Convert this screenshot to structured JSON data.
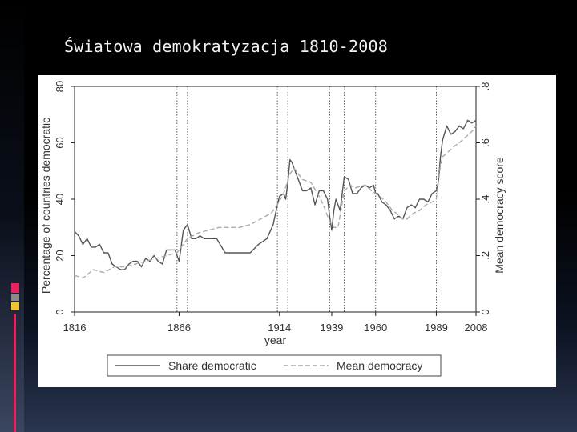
{
  "slide": {
    "title": "Światowa demokratyzacja 1810-2008",
    "colors": {
      "background": "#000000",
      "accent_bar": "#3b4660",
      "deco_red": "#e8225a",
      "deco_gray": "#8a8a8a",
      "deco_yellow": "#f2c230"
    }
  },
  "chart_data": {
    "type": "line",
    "title": "",
    "xlabel": "year",
    "ylabel": "Percentage of countries democratic",
    "ylabel_right": "Mean democracy score",
    "xlim": [
      1816,
      2008
    ],
    "ylim": [
      0,
      80
    ],
    "ylim_right": [
      0,
      0.8
    ],
    "x_ticks": [
      1816,
      1866,
      1914,
      1939,
      1960,
      1989,
      2008
    ],
    "x_tick_labels": [
      "1816",
      "1866",
      "1914",
      "1939",
      "1960",
      "1989",
      "2008"
    ],
    "y_ticks": [
      0,
      20,
      40,
      60,
      80
    ],
    "y_tick_labels": [
      "0",
      "20",
      "40",
      "60",
      "80"
    ],
    "y_ticks_right": [
      0,
      0.2,
      0.4,
      0.6,
      0.8
    ],
    "y_tick_labels_right": [
      "0",
      ".2",
      ".4",
      ".6",
      ".8"
    ],
    "vlines": [
      1865,
      1870,
      1913,
      1918,
      1938,
      1945,
      1960,
      1989
    ],
    "grid": false,
    "legend_position": "bottom",
    "series": [
      {
        "name": "Share democratic",
        "axis": "left",
        "style": "solid",
        "color": "#555555",
        "x": [
          1816,
          1818,
          1820,
          1822,
          1824,
          1826,
          1828,
          1830,
          1832,
          1834,
          1836,
          1838,
          1840,
          1842,
          1844,
          1846,
          1848,
          1850,
          1852,
          1854,
          1856,
          1858,
          1860,
          1862,
          1864,
          1866,
          1868,
          1870,
          1872,
          1874,
          1876,
          1878,
          1880,
          1884,
          1888,
          1892,
          1896,
          1900,
          1904,
          1908,
          1911,
          1913,
          1914,
          1916,
          1917,
          1918,
          1919,
          1920,
          1921,
          1923,
          1925,
          1927,
          1929,
          1931,
          1933,
          1935,
          1937,
          1938,
          1939,
          1940,
          1941,
          1943,
          1945,
          1947,
          1949,
          1951,
          1953,
          1955,
          1957,
          1959,
          1960,
          1961,
          1963,
          1965,
          1967,
          1969,
          1971,
          1973,
          1975,
          1977,
          1979,
          1981,
          1983,
          1985,
          1987,
          1989,
          1990,
          1991,
          1992,
          1994,
          1996,
          1998,
          2000,
          2002,
          2004,
          2006,
          2008
        ],
        "values": [
          28.5,
          27,
          24,
          26,
          23,
          23,
          24,
          21,
          21,
          17,
          16,
          15,
          15,
          17,
          18,
          18,
          16,
          19,
          18,
          20,
          18,
          17,
          22,
          22,
          22,
          18,
          29,
          31,
          26,
          26,
          27,
          26,
          26,
          26,
          21,
          21,
          21,
          21,
          24,
          26,
          31,
          38,
          41,
          42,
          40,
          46,
          54,
          53,
          51,
          47,
          43,
          43,
          44,
          38,
          43,
          43,
          40,
          34,
          29,
          36,
          40,
          36,
          48,
          47,
          42,
          42,
          44,
          45,
          44,
          45,
          42,
          42,
          39,
          38,
          36,
          33,
          34,
          33,
          37,
          38,
          37,
          40,
          40,
          39,
          42,
          43,
          46,
          55,
          61,
          66,
          63,
          64,
          66,
          65,
          68,
          67,
          68
        ]
      },
      {
        "name": "Mean democracy",
        "axis": "right",
        "style": "dashed",
        "color": "#aaaaaa",
        "x": [
          1816,
          1820,
          1825,
          1830,
          1835,
          1840,
          1845,
          1850,
          1855,
          1860,
          1865,
          1866,
          1870,
          1875,
          1880,
          1885,
          1890,
          1895,
          1900,
          1905,
          1910,
          1913,
          1916,
          1919,
          1921,
          1925,
          1929,
          1933,
          1935,
          1937,
          1939,
          1940,
          1942,
          1945,
          1948,
          1950,
          1955,
          1958,
          1960,
          1962,
          1965,
          1968,
          1970,
          1973,
          1975,
          1978,
          1981,
          1984,
          1987,
          1989,
          1990,
          1991,
          1992,
          1995,
          1998,
          2000,
          2003,
          2006,
          2008
        ],
        "values": [
          0.13,
          0.12,
          0.15,
          0.14,
          0.16,
          0.16,
          0.17,
          0.18,
          0.19,
          0.2,
          0.21,
          0.22,
          0.26,
          0.28,
          0.29,
          0.3,
          0.3,
          0.3,
          0.31,
          0.33,
          0.35,
          0.38,
          0.42,
          0.49,
          0.51,
          0.47,
          0.46,
          0.41,
          0.38,
          0.34,
          0.31,
          0.3,
          0.3,
          0.43,
          0.45,
          0.44,
          0.45,
          0.43,
          0.42,
          0.41,
          0.39,
          0.36,
          0.35,
          0.33,
          0.33,
          0.35,
          0.36,
          0.38,
          0.39,
          0.4,
          0.46,
          0.52,
          0.55,
          0.57,
          0.59,
          0.6,
          0.62,
          0.64,
          0.66
        ]
      }
    ]
  }
}
